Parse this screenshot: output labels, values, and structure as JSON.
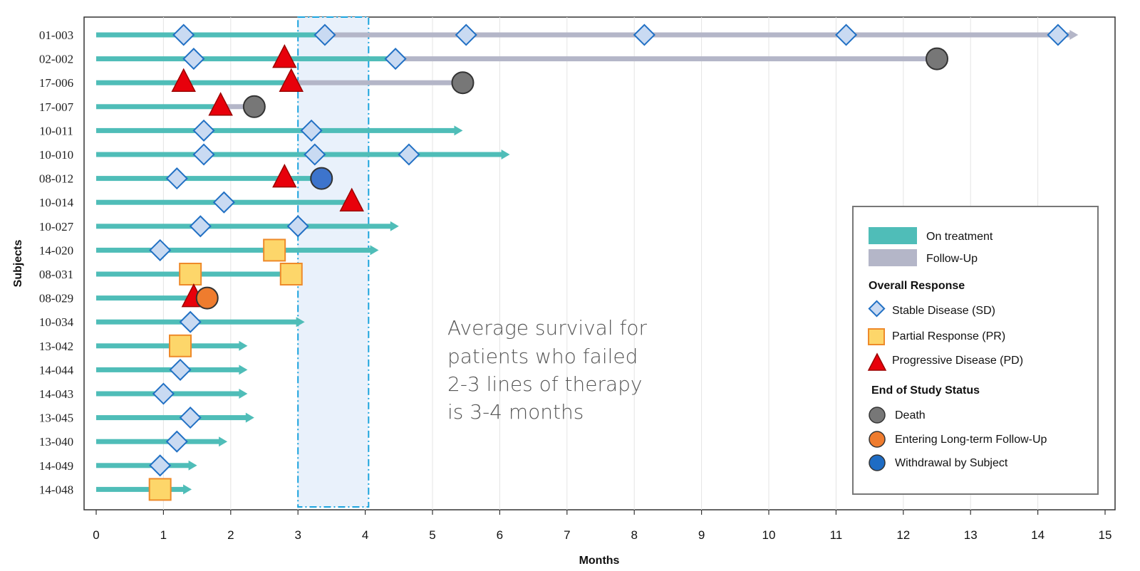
{
  "colors": {
    "on_treatment": "#4fbdb8",
    "follow_up": "#b4b6c8",
    "sd_fill": "#c9daf2",
    "sd_stroke": "#2170c4",
    "pr_fill": "#fdd66a",
    "pr_stroke": "#ee8a2a",
    "pd_fill": "#e8000b",
    "pd_stroke": "#9a0000",
    "death": "#777777",
    "ltfu": "#ef7c2e",
    "withdrawal": "#3d74cc",
    "window_fill": "#e9f1fb",
    "window_stroke": "#1ba3dd"
  },
  "annotation": {
    "lines": [
      "Average survival for",
      "patients who failed",
      "2-3 lines of therapy",
      "is 3-4 months"
    ],
    "window_months": [
      3,
      4.05
    ]
  },
  "legend": {
    "on_treatment": "On treatment",
    "follow_up": "Follow-Up",
    "response_title": "Overall Response",
    "sd": "Stable Disease (SD)",
    "pr": "Partial Response (PR)",
    "pd": "Progressive Disease (PD)",
    "status_title": "End of Study Status",
    "death": "Death",
    "ltfu": "Entering Long-term Follow-Up",
    "withdrawal": "Withdrawal by Subject"
  },
  "chart_data": {
    "type": "swimmer",
    "xlabel": "Months",
    "ylabel": "Subjects",
    "xlim": [
      0,
      15
    ],
    "xticks": [
      "0",
      "1",
      "2",
      "3",
      "4",
      "5",
      "6",
      "7",
      "8",
      "9",
      "10",
      "11",
      "12",
      "13",
      "14",
      "15"
    ],
    "grid": "vertical",
    "legend_position": "right",
    "subjects": [
      {
        "id": "01-003",
        "treatment_end": 3.4,
        "followup_end": 14.6,
        "arrow": "followup",
        "events": [
          {
            "t": 1.3,
            "type": "SD"
          },
          {
            "t": 3.4,
            "type": "SD"
          },
          {
            "t": 5.5,
            "type": "SD"
          },
          {
            "t": 8.15,
            "type": "SD"
          },
          {
            "t": 11.15,
            "type": "SD"
          },
          {
            "t": 14.3,
            "type": "SD"
          }
        ]
      },
      {
        "id": "02-002",
        "treatment_end": 4.4,
        "followup_end": 12.5,
        "arrow": "none",
        "events": [
          {
            "t": 1.45,
            "type": "SD"
          },
          {
            "t": 2.8,
            "type": "PD"
          },
          {
            "t": 4.45,
            "type": "SD"
          },
          {
            "t": 12.5,
            "type": "Death"
          }
        ]
      },
      {
        "id": "17-006",
        "treatment_end": 3.0,
        "followup_end": 5.45,
        "arrow": "none",
        "events": [
          {
            "t": 1.3,
            "type": "PD"
          },
          {
            "t": 2.9,
            "type": "PD"
          },
          {
            "t": 5.45,
            "type": "Death"
          }
        ]
      },
      {
        "id": "17-007",
        "treatment_end": 1.85,
        "followup_end": 2.35,
        "arrow": "none",
        "events": [
          {
            "t": 1.85,
            "type": "PD"
          },
          {
            "t": 2.35,
            "type": "Death"
          }
        ]
      },
      {
        "id": "10-011",
        "treatment_end": 5.45,
        "followup_end": null,
        "arrow": "treatment",
        "events": [
          {
            "t": 1.6,
            "type": "SD"
          },
          {
            "t": 3.2,
            "type": "SD"
          }
        ]
      },
      {
        "id": "10-010",
        "treatment_end": 6.15,
        "followup_end": null,
        "arrow": "treatment",
        "events": [
          {
            "t": 1.6,
            "type": "SD"
          },
          {
            "t": 3.25,
            "type": "SD"
          },
          {
            "t": 4.65,
            "type": "SD"
          }
        ]
      },
      {
        "id": "08-012",
        "treatment_end": 3.35,
        "followup_end": null,
        "arrow": "none",
        "events": [
          {
            "t": 1.2,
            "type": "SD"
          },
          {
            "t": 2.8,
            "type": "PD"
          },
          {
            "t": 3.35,
            "type": "Withdrawal"
          }
        ]
      },
      {
        "id": "10-014",
        "treatment_end": 3.85,
        "followup_end": null,
        "arrow": "treatment",
        "events": [
          {
            "t": 1.9,
            "type": "SD"
          },
          {
            "t": 3.8,
            "type": "PD"
          }
        ]
      },
      {
        "id": "10-027",
        "treatment_end": 4.5,
        "followup_end": null,
        "arrow": "treatment",
        "events": [
          {
            "t": 1.55,
            "type": "SD"
          },
          {
            "t": 3.0,
            "type": "SD"
          }
        ]
      },
      {
        "id": "14-020",
        "treatment_end": 4.2,
        "followup_end": null,
        "arrow": "treatment",
        "events": [
          {
            "t": 0.95,
            "type": "SD"
          },
          {
            "t": 2.65,
            "type": "PR"
          }
        ]
      },
      {
        "id": "08-031",
        "treatment_end": 2.9,
        "followup_end": null,
        "arrow": "none",
        "events": [
          {
            "t": 1.4,
            "type": "PR"
          },
          {
            "t": 2.9,
            "type": "PR"
          }
        ]
      },
      {
        "id": "08-029",
        "treatment_end": 1.65,
        "followup_end": null,
        "arrow": "none",
        "events": [
          {
            "t": 1.45,
            "type": "PD"
          },
          {
            "t": 1.65,
            "type": "LTFU"
          }
        ]
      },
      {
        "id": "10-034",
        "treatment_end": 3.1,
        "followup_end": null,
        "arrow": "treatment",
        "events": [
          {
            "t": 1.4,
            "type": "SD"
          }
        ]
      },
      {
        "id": "13-042",
        "treatment_end": 2.25,
        "followup_end": null,
        "arrow": "treatment",
        "events": [
          {
            "t": 1.25,
            "type": "PR"
          }
        ]
      },
      {
        "id": "14-044",
        "treatment_end": 2.25,
        "followup_end": null,
        "arrow": "treatment",
        "events": [
          {
            "t": 1.25,
            "type": "SD"
          }
        ]
      },
      {
        "id": "14-043",
        "treatment_end": 2.25,
        "followup_end": null,
        "arrow": "treatment",
        "events": [
          {
            "t": 1.0,
            "type": "SD"
          }
        ]
      },
      {
        "id": "13-045",
        "treatment_end": 2.35,
        "followup_end": null,
        "arrow": "treatment",
        "events": [
          {
            "t": 1.4,
            "type": "SD"
          }
        ]
      },
      {
        "id": "13-040",
        "treatment_end": 1.95,
        "followup_end": null,
        "arrow": "treatment",
        "events": [
          {
            "t": 1.2,
            "type": "SD"
          }
        ]
      },
      {
        "id": "14-049",
        "treatment_end": 1.5,
        "followup_end": null,
        "arrow": "treatment",
        "events": [
          {
            "t": 0.95,
            "type": "SD"
          }
        ]
      },
      {
        "id": "14-048",
        "treatment_end": 1.42,
        "followup_end": null,
        "arrow": "treatment",
        "events": [
          {
            "t": 0.95,
            "type": "PR"
          }
        ]
      }
    ]
  }
}
